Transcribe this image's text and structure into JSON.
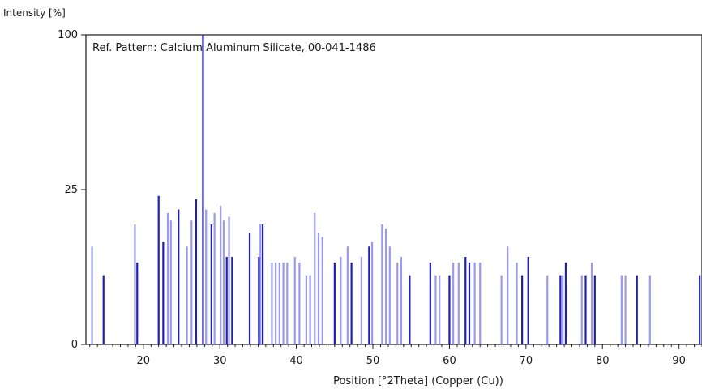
{
  "chart_data": {
    "type": "bar",
    "ylabel": "Intensity [%]",
    "xlabel": "Position [°2Theta] (Copper (Cu))",
    "annotation": "Ref. Pattern: Calcium Aluminum Silicate, 00-041-1486",
    "x_ticks": [
      "20",
      "30",
      "40",
      "50",
      "60",
      "70",
      "80",
      "90"
    ],
    "y_ticks": [
      "0",
      "25",
      "100"
    ],
    "xlim": [
      12.5,
      93
    ],
    "y_scale": "sqrt",
    "ylim": [
      0,
      100
    ],
    "colors": {
      "dark": "#1f1fb0",
      "light": "#9a9af0",
      "axis": "#1a1a1a"
    },
    "series": [
      {
        "color": "dark",
        "peaks": [
          [
            14.8,
            5
          ],
          [
            19.2,
            7
          ],
          [
            22.0,
            23
          ],
          [
            22.6,
            11
          ],
          [
            24.6,
            19
          ],
          [
            26.9,
            22
          ],
          [
            27.8,
            100
          ],
          [
            28.9,
            15
          ],
          [
            30.9,
            8
          ],
          [
            31.6,
            8
          ],
          [
            33.9,
            13
          ],
          [
            35.1,
            8
          ],
          [
            35.6,
            15
          ],
          [
            45.0,
            7
          ],
          [
            47.2,
            7
          ],
          [
            49.5,
            10
          ],
          [
            54.8,
            5
          ],
          [
            57.5,
            7
          ],
          [
            60.0,
            5
          ],
          [
            62.1,
            8
          ],
          [
            62.6,
            7
          ],
          [
            69.5,
            5
          ],
          [
            70.3,
            8
          ],
          [
            74.5,
            5
          ],
          [
            75.2,
            7
          ],
          [
            77.8,
            5
          ],
          [
            79.0,
            5
          ],
          [
            84.5,
            5
          ],
          [
            92.7,
            5
          ]
        ]
      },
      {
        "color": "light",
        "peaks": [
          [
            13.3,
            10
          ],
          [
            18.9,
            15
          ],
          [
            23.2,
            18
          ],
          [
            23.6,
            16
          ],
          [
            25.7,
            10
          ],
          [
            26.3,
            16
          ],
          [
            28.2,
            19
          ],
          [
            29.3,
            18
          ],
          [
            30.1,
            20
          ],
          [
            30.5,
            16
          ],
          [
            31.2,
            17
          ],
          [
            35.3,
            15
          ],
          [
            36.8,
            7
          ],
          [
            37.3,
            7
          ],
          [
            37.8,
            7
          ],
          [
            38.3,
            7
          ],
          [
            38.8,
            7
          ],
          [
            39.8,
            8
          ],
          [
            40.4,
            7
          ],
          [
            41.3,
            5
          ],
          [
            41.8,
            5
          ],
          [
            42.4,
            18
          ],
          [
            42.9,
            13
          ],
          [
            43.4,
            12
          ],
          [
            45.8,
            8
          ],
          [
            46.7,
            10
          ],
          [
            48.5,
            8
          ],
          [
            49.9,
            11
          ],
          [
            51.2,
            15
          ],
          [
            51.7,
            14
          ],
          [
            52.2,
            10
          ],
          [
            53.2,
            7
          ],
          [
            53.7,
            8
          ],
          [
            58.2,
            5
          ],
          [
            58.7,
            5
          ],
          [
            60.5,
            7
          ],
          [
            61.2,
            7
          ],
          [
            63.3,
            7
          ],
          [
            64.0,
            7
          ],
          [
            66.8,
            5
          ],
          [
            67.6,
            10
          ],
          [
            68.8,
            7
          ],
          [
            72.8,
            5
          ],
          [
            74.8,
            5
          ],
          [
            77.3,
            5
          ],
          [
            78.6,
            7
          ],
          [
            82.5,
            5
          ],
          [
            83.0,
            5
          ],
          [
            86.2,
            5
          ]
        ]
      }
    ]
  }
}
